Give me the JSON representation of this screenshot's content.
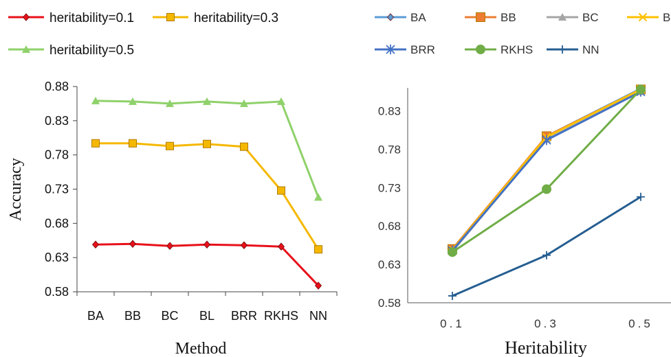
{
  "chart_data": [
    {
      "type": "line",
      "title": "",
      "xlabel": "Method",
      "ylabel": "Accuracy",
      "categories": [
        "BA",
        "BB",
        "BC",
        "BL",
        "BRR",
        "RKHS",
        "NN"
      ],
      "yticks": [
        "0.58",
        "0.63",
        "0.68",
        "0.73",
        "0.78",
        "0.83",
        "0.88"
      ],
      "ylim": [
        0.58,
        0.88
      ],
      "grid": false,
      "legend_position": "top",
      "series": [
        {
          "name": "heritability=0.1",
          "color": "#e8101a",
          "marker": "diamond",
          "values": [
            0.649,
            0.65,
            0.647,
            0.649,
            0.648,
            0.646,
            0.589
          ]
        },
        {
          "name": "heritability=0.3",
          "color": "#f5b800",
          "marker": "square",
          "values": [
            0.797,
            0.797,
            0.793,
            0.796,
            0.792,
            0.728,
            0.642
          ]
        },
        {
          "name": "heritability=0.5",
          "color": "#8fd16a",
          "marker": "triangle",
          "values": [
            0.859,
            0.858,
            0.855,
            0.858,
            0.855,
            0.858,
            0.718
          ]
        }
      ]
    },
    {
      "type": "line",
      "title": "",
      "xlabel": "Heritability",
      "ylabel": "",
      "categories": [
        "0.1",
        "0.3",
        "0.5"
      ],
      "yticks": [
        "0.58",
        "0.63",
        "0.68",
        "0.73",
        "0.78",
        "0.83"
      ],
      "ylim": [
        0.58,
        0.86
      ],
      "grid": false,
      "legend_position": "top",
      "series": [
        {
          "name": "BA",
          "color": "#5b9bd5",
          "marker": "diamond",
          "values": [
            0.649,
            0.797,
            0.859
          ]
        },
        {
          "name": "BB",
          "color": "#ed7d31",
          "marker": "square",
          "values": [
            0.65,
            0.797,
            0.858
          ]
        },
        {
          "name": "BC",
          "color": "#a5a5a5",
          "marker": "triangle",
          "values": [
            0.647,
            0.793,
            0.855
          ]
        },
        {
          "name": "BL",
          "color": "#ffc000",
          "marker": "x",
          "values": [
            0.649,
            0.796,
            0.858
          ]
        },
        {
          "name": "BRR",
          "color": "#4472c4",
          "marker": "star",
          "values": [
            0.648,
            0.792,
            0.855
          ]
        },
        {
          "name": "RKHS",
          "color": "#70ad47",
          "marker": "circle",
          "values": [
            0.646,
            0.728,
            0.858
          ]
        },
        {
          "name": "NN",
          "color": "#255e91",
          "marker": "plus",
          "values": [
            0.589,
            0.642,
            0.718
          ]
        }
      ]
    }
  ]
}
